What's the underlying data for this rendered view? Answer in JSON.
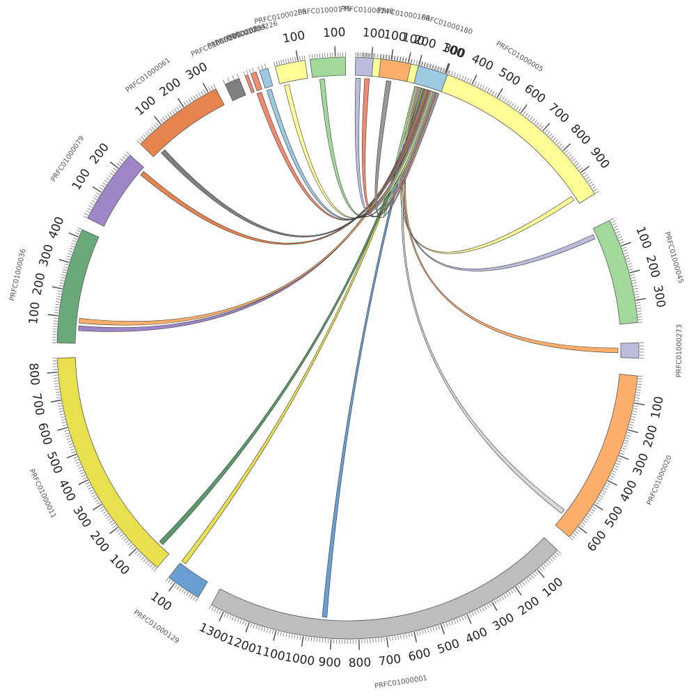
{
  "diagram": {
    "type": "circos",
    "hub_contig": "PRFC01000180",
    "contigs": [
      {
        "id": "PRFC01000005",
        "length": 990,
        "color": "#ffff99",
        "start_deg": 3.0,
        "end_deg": 58.0,
        "labels": [
          100,
          200,
          300,
          400,
          500,
          600,
          700,
          800,
          900
        ]
      },
      {
        "id": "PRFC01000045",
        "length": 380,
        "color": "#a1d99b",
        "start_deg": 64.0,
        "end_deg": 85.0,
        "labels": [
          100,
          200,
          300
        ]
      },
      {
        "id": "PRFC01000273",
        "length": 50,
        "color": "#bcbddc",
        "start_deg": 89.0,
        "end_deg": 92.0,
        "labels": []
      },
      {
        "id": "PRFC01000020",
        "length": 650,
        "color": "#fdae6b",
        "start_deg": 95.5,
        "end_deg": 130.5,
        "labels": [
          100,
          200,
          300,
          400,
          500,
          600
        ]
      },
      {
        "id": "PRFC01000001",
        "length": 1350,
        "color": "#bdbdbd",
        "start_deg": 134.0,
        "end_deg": 208.0,
        "labels": [
          100,
          200,
          300,
          400,
          500,
          600,
          700,
          800,
          900,
          1000,
          1100,
          1200,
          1300
        ]
      },
      {
        "id": "PRFC01000129",
        "length": 130,
        "color": "#6a9fd4",
        "start_deg": 211.0,
        "end_deg": 218.0,
        "labels": [
          100
        ]
      },
      {
        "id": "PRFC01000011",
        "length": 850,
        "color": "#e8e04e",
        "start_deg": 221.0,
        "end_deg": 268.0,
        "labels": [
          100,
          200,
          300,
          400,
          500,
          600,
          700,
          800
        ]
      },
      {
        "id": "PRFC01000036",
        "length": 430,
        "color": "#6aaa7a",
        "start_deg": 271.0,
        "end_deg": 294.0,
        "labels": [
          100,
          200,
          300,
          400
        ]
      },
      {
        "id": "PRFC01000079",
        "length": 260,
        "color": "#9e86c8",
        "start_deg": 296.5,
        "end_deg": 311.5,
        "labels": [
          100,
          200
        ]
      },
      {
        "id": "PRFC01000061",
        "length": 330,
        "color": "#e6844f",
        "start_deg": 314.5,
        "end_deg": 333.0,
        "labels": [
          100,
          200,
          300
        ]
      },
      {
        "id": "PRFC01000290",
        "length": 30,
        "color": "#808080",
        "start_deg": 335.0,
        "end_deg": 338.0,
        "labels": []
      },
      {
        "id": "PRFC01000288",
        "length": 10,
        "color": "#f08a70",
        "start_deg": 339.3,
        "end_deg": 339.9,
        "labels": []
      },
      {
        "id": "PRFC01000284",
        "length": 18,
        "color": "#f08a70",
        "start_deg": 340.5,
        "end_deg": 341.6,
        "labels": []
      },
      {
        "id": "PRFC01000226",
        "length": 25,
        "color": "#9ecae1",
        "start_deg": 342.3,
        "end_deg": 344.0,
        "labels": []
      },
      {
        "id": "PRFC01000205",
        "length": 130,
        "color": "#ffff99",
        "start_deg": 345.5,
        "end_deg": 351.5,
        "labels": [
          100
        ]
      },
      {
        "id": "PRFC01000175",
        "length": 140,
        "color": "#a1d99b",
        "start_deg": 352.5,
        "end_deg": 359.5,
        "labels": [
          100
        ]
      },
      {
        "id": "PRFC01000240",
        "length": 110,
        "color": "#bcbddc",
        "start_deg": 1.5,
        "end_deg": 5.0,
        "labels": [
          100
        ],
        "_note": "angle interpreted relative to 360"
      },
      {
        "id": "PRFC01000166",
        "length": 110,
        "color": "#fdae6b",
        "start_deg": 6.5,
        "end_deg": 12.5,
        "labels": [
          100
        ]
      },
      {
        "id": "PRFC01000180",
        "length": 110,
        "color": "#9ecae1",
        "start_deg": 14.0,
        "end_deg": 20.0,
        "labels": [
          100
        ]
      }
    ],
    "links": [
      {
        "to": "PRFC01000005",
        "pos": 230,
        "color": "#a1d99b"
      },
      {
        "to": "PRFC01000005",
        "pos": 960,
        "color": "#ffff99"
      },
      {
        "to": "PRFC01000045",
        "pos": 30,
        "color": "#bcbddc"
      },
      {
        "to": "PRFC01000273",
        "pos": 25,
        "color": "#fdae6b"
      },
      {
        "to": "PRFC01000020",
        "pos": 590,
        "color": "#d9d9d9"
      },
      {
        "to": "PRFC01000001",
        "pos": 930,
        "color": "#6a9fd4"
      },
      {
        "to": "PRFC01000129",
        "pos": 120,
        "color": "#e8e04e"
      },
      {
        "to": "PRFC01000011",
        "pos": 50,
        "color": "#5a9a6a"
      },
      {
        "to": "PRFC01000036",
        "pos": 60,
        "color": "#9e86c8"
      },
      {
        "to": "PRFC01000036",
        "pos": 90,
        "color": "#fdae6b"
      },
      {
        "to": "PRFC01000079",
        "pos": 240,
        "color": "#e6844f"
      },
      {
        "to": "PRFC01000061",
        "pos": 40,
        "color": "#808080"
      },
      {
        "to": "PRFC01000284",
        "pos": 5,
        "color": "#f08a70"
      },
      {
        "to": "PRFC01000226",
        "pos": 10,
        "color": "#9ecae1"
      },
      {
        "to": "PRFC01000205",
        "pos": 30,
        "color": "#ffff99"
      },
      {
        "to": "PRFC01000175",
        "pos": 40,
        "color": "#a1d99b"
      },
      {
        "to": "PRFC01000240",
        "pos": 20,
        "color": "#bcbddc"
      },
      {
        "to": "PRFC01000240",
        "pos": 80,
        "color": "#f08a70"
      },
      {
        "to": "PRFC01000166",
        "pos": 40,
        "color": "#999999"
      }
    ]
  }
}
